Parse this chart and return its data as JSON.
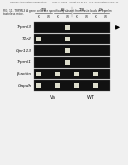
{
  "title_line1": "Human Application Publication        May 7, 2009   Sheet 10 of 21   U.S. Publication Filed: 11",
  "fig_label": "FIG. 11. TRPML3 A gene cells are specifically absent from taste buds in Trpmlm",
  "fig_label2": "tasteless mice.",
  "col_headers": [
    "TB",
    "LS",
    "TB",
    "LS"
  ],
  "col_sub1": [
    "K",
    "W",
    "K",
    "W",
    "K",
    "W",
    "K",
    "W"
  ],
  "group_labels": [
    "Va",
    "WT"
  ],
  "row_labels": [
    "Trpml3",
    "T1r2",
    "Gpr113",
    "Trpml1",
    "β-actin",
    "Gapdh"
  ],
  "band_positions": {
    "Trpml3": [
      0,
      0,
      0,
      1,
      0,
      0,
      0,
      0
    ],
    "T1r2": [
      1,
      0,
      0,
      1,
      0,
      0,
      0,
      0
    ],
    "Gpr113": [
      0,
      0,
      0,
      1,
      0,
      0,
      0,
      0
    ],
    "Trpml1": [
      0,
      0,
      0,
      1,
      0,
      0,
      0,
      0
    ],
    "β-actin": [
      1,
      0,
      1,
      0,
      1,
      0,
      1,
      0
    ],
    "Gapdh": [
      1,
      0,
      1,
      0,
      1,
      0,
      1,
      0
    ]
  },
  "arrow_row": 0,
  "background_color": "#f0f0f0",
  "gel_bg": "#111111",
  "band_color": "#ddddcc",
  "arrow_color": "#000000"
}
